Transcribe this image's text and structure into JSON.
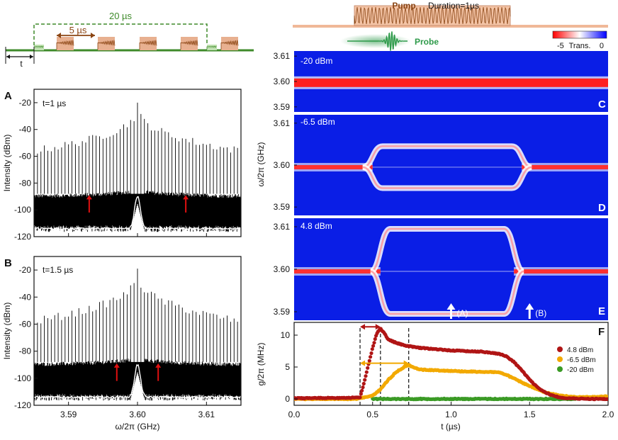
{
  "pulse_diagram": {
    "period_label": "20 µs",
    "pulse_label": "5 µs",
    "delay_label": "t",
    "colors": {
      "period": "#3e8a2a",
      "pulse": "#8b4513",
      "pulse_fill": "#e8b090",
      "baseline": "#3e8a2a"
    }
  },
  "pump_probe": {
    "pump_label": "Pump",
    "duration_label": "Duration=1µs",
    "probe_label": "Probe",
    "colors": {
      "pump": "#8b4513",
      "pump_fill": "#f0b898",
      "probe": "#2e9a4a"
    }
  },
  "colorbar": {
    "min_label": "-5",
    "mid_label": "Trans.",
    "max_label": "0"
  },
  "chart_data": [
    {
      "panel": "A",
      "type": "line",
      "annotation": "t=1 µs",
      "xlabel": "ω/2π (GHz)",
      "ylabel": "Intensity (dBm)",
      "xlim": [
        3.585,
        3.615
      ],
      "ylim": [
        -120,
        -10
      ],
      "xticks": [
        "3.59",
        "3.60",
        "3.61"
      ],
      "yticks": [
        "-20",
        "-40",
        "-60",
        "-80",
        "-100",
        "-120"
      ],
      "comb_center_ghz": 3.6,
      "comb_peak_dbm": -20,
      "comb_line_spacing_ghz": 0.0005,
      "comb_envelope_edge_dbm": -56,
      "noise_floor_dbm": -90,
      "noise_bottom_dbm": -115,
      "arrows_x_ghz": [
        3.593,
        3.607
      ]
    },
    {
      "panel": "B",
      "type": "line",
      "annotation": "t=1.5 µs",
      "xlabel": "ω/2π (GHz)",
      "ylabel": "Intensity (dBm)",
      "xlim": [
        3.585,
        3.615
      ],
      "ylim": [
        -120,
        -10
      ],
      "xticks": [
        "3.59",
        "3.60",
        "3.61"
      ],
      "yticks": [
        "-20",
        "-40",
        "-60",
        "-80",
        "-100",
        "-120"
      ],
      "comb_center_ghz": 3.6,
      "comb_peak_dbm": -19,
      "comb_line_spacing_ghz": 0.0005,
      "comb_envelope_edge_dbm": -58,
      "noise_floor_dbm": -90,
      "noise_bottom_dbm": -115,
      "arrows_x_ghz": [
        3.597,
        3.603
      ]
    },
    {
      "panel": "C",
      "type": "heatmap",
      "annotation": "-20 dBm",
      "xlim": [
        0,
        2.0
      ],
      "ylim": [
        3.588,
        3.612
      ],
      "yticks": [
        "3.61",
        "3.60",
        "3.59"
      ],
      "center_ghz": 3.5995,
      "half_width_mhz": 0,
      "onset_us": null,
      "offset_us": null
    },
    {
      "panel": "D",
      "type": "heatmap",
      "annotation": "-6.5 dBm",
      "ylabel": "ω/2π (GHz)",
      "xlim": [
        0,
        2.0
      ],
      "ylim": [
        3.588,
        3.612
      ],
      "yticks": [
        "3.61",
        "3.60",
        "3.59"
      ],
      "center_ghz": 3.5995,
      "half_width_mhz": 5,
      "onset_us": 0.5,
      "offset_us": 1.45
    },
    {
      "panel": "E",
      "type": "heatmap",
      "annotation": "4.8 dBm",
      "xlim": [
        0,
        2.0
      ],
      "ylim": [
        3.588,
        3.612
      ],
      "yticks": [
        "3.61",
        "3.60",
        "3.59"
      ],
      "center_ghz": 3.5995,
      "half_width_mhz": 10,
      "onset_us": 0.55,
      "offset_us": 1.4,
      "markers": [
        {
          "label": "(A)",
          "x": 1.0
        },
        {
          "label": "(B)",
          "x": 1.5
        }
      ]
    },
    {
      "panel": "F",
      "type": "line",
      "xlabel": "t (µs)",
      "ylabel": "g/2π (MHz)",
      "xlim": [
        0,
        2.0
      ],
      "ylim": [
        -1,
        12
      ],
      "xticks": [
        "0.0",
        "0.5",
        "1.0",
        "1.5",
        "2.0"
      ],
      "yticks": [
        "10",
        "5",
        "0"
      ],
      "series": [
        {
          "name": "4.8 dBm",
          "color": "#b01515",
          "x": [
            0.0,
            0.42,
            0.45,
            0.5,
            0.53,
            0.55,
            0.57,
            0.6,
            0.65,
            0.7,
            0.8,
            0.9,
            1.0,
            1.1,
            1.2,
            1.3,
            1.35,
            1.4,
            1.45,
            1.5,
            1.55,
            1.6,
            1.65,
            1.7,
            1.75,
            1.8,
            1.9,
            2.0
          ],
          "y": [
            0.1,
            0.2,
            3.0,
            8.0,
            10.5,
            11.0,
            10.5,
            9.3,
            8.8,
            8.4,
            8.0,
            7.8,
            7.6,
            7.5,
            7.4,
            7.1,
            6.7,
            5.8,
            4.5,
            3.0,
            1.8,
            1.0,
            0.5,
            0.2,
            0.1,
            0.05,
            0.0,
            0.0
          ]
        },
        {
          "name": "-6.5 dBm",
          "color": "#f2a900",
          "x": [
            0.0,
            0.4,
            0.5,
            0.55,
            0.6,
            0.65,
            0.7,
            0.73,
            0.76,
            0.8,
            0.9,
            1.0,
            1.1,
            1.2,
            1.3,
            1.35,
            1.4,
            1.5,
            1.6,
            1.7,
            1.8,
            1.9,
            2.0
          ],
          "y": [
            0.0,
            0.0,
            0.5,
            1.5,
            3.0,
            4.2,
            5.0,
            5.3,
            5.0,
            4.6,
            4.5,
            4.4,
            4.3,
            4.25,
            4.2,
            3.8,
            3.2,
            2.0,
            1.0,
            0.5,
            0.3,
            0.3,
            0.4
          ]
        },
        {
          "name": "-20 dBm",
          "color": "#3a9a25",
          "x": [
            0.5,
            0.6,
            0.8,
            1.0,
            1.2,
            1.4,
            1.6,
            1.8
          ],
          "y": [
            0.0,
            0.0,
            0.0,
            0.0,
            0.0,
            0.0,
            0.0,
            0.0
          ]
        }
      ],
      "delay_arrows": [
        {
          "color": "#b01515",
          "x_from": 0.42,
          "x_to": 0.55,
          "y": 11.3
        },
        {
          "color": "#f2a900",
          "x_from": 0.42,
          "x_to": 0.73,
          "y": 5.6
        }
      ],
      "dashed_lines_x": [
        0.42,
        0.55,
        0.73
      ]
    }
  ]
}
